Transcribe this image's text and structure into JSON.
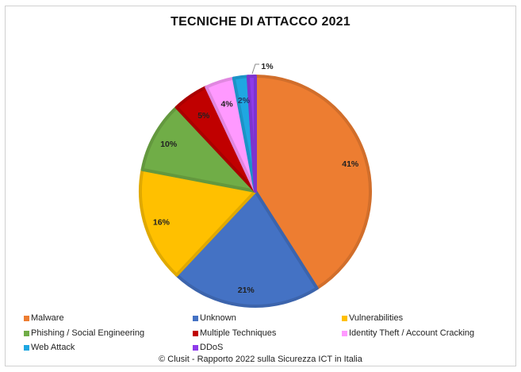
{
  "chart_data": {
    "type": "pie",
    "title": "TECNICHE DI ATTACCO 2021",
    "categories": [
      "Malware",
      "Unknown",
      "Vulnerabilities",
      "Phishing / Social Engineering",
      "Multiple Techniques",
      "Identity Theft / Account Cracking",
      "Web Attack",
      "DDoS"
    ],
    "values": [
      41,
      21,
      16,
      10,
      5,
      4,
      2,
      1
    ],
    "labels": [
      "41%",
      "21%",
      "16%",
      "10%",
      "5%",
      "4%",
      "2%",
      "1%"
    ],
    "colors": [
      "#ED7D31",
      "#4472C4",
      "#FFC000",
      "#70AD47",
      "#C00000",
      "#FF99FF",
      "#1FA7E1",
      "#8E3BEA"
    ],
    "legend_position": "bottom",
    "source": "© Clusit - Rapporto 2022 sulla Sicurezza ICT in Italia"
  },
  "title": "TECNICHE DI ATTACCO 2021",
  "legend": [
    {
      "label": "Malware",
      "color": "#ED7D31"
    },
    {
      "label": "Unknown",
      "color": "#4472C4"
    },
    {
      "label": "Vulnerabilities",
      "color": "#FFC000"
    },
    {
      "label": "Phishing / Social Engineering",
      "color": "#70AD47"
    },
    {
      "label": "Multiple Techniques",
      "color": "#C00000"
    },
    {
      "label": "Identity Theft / Account Cracking",
      "color": "#FF99FF"
    },
    {
      "label": "Web Attack",
      "color": "#1FA7E1"
    },
    {
      "label": "DDoS",
      "color": "#8E3BEA"
    }
  ],
  "source": "© Clusit - Rapporto 2022 sulla Sicurezza ICT in Italia"
}
